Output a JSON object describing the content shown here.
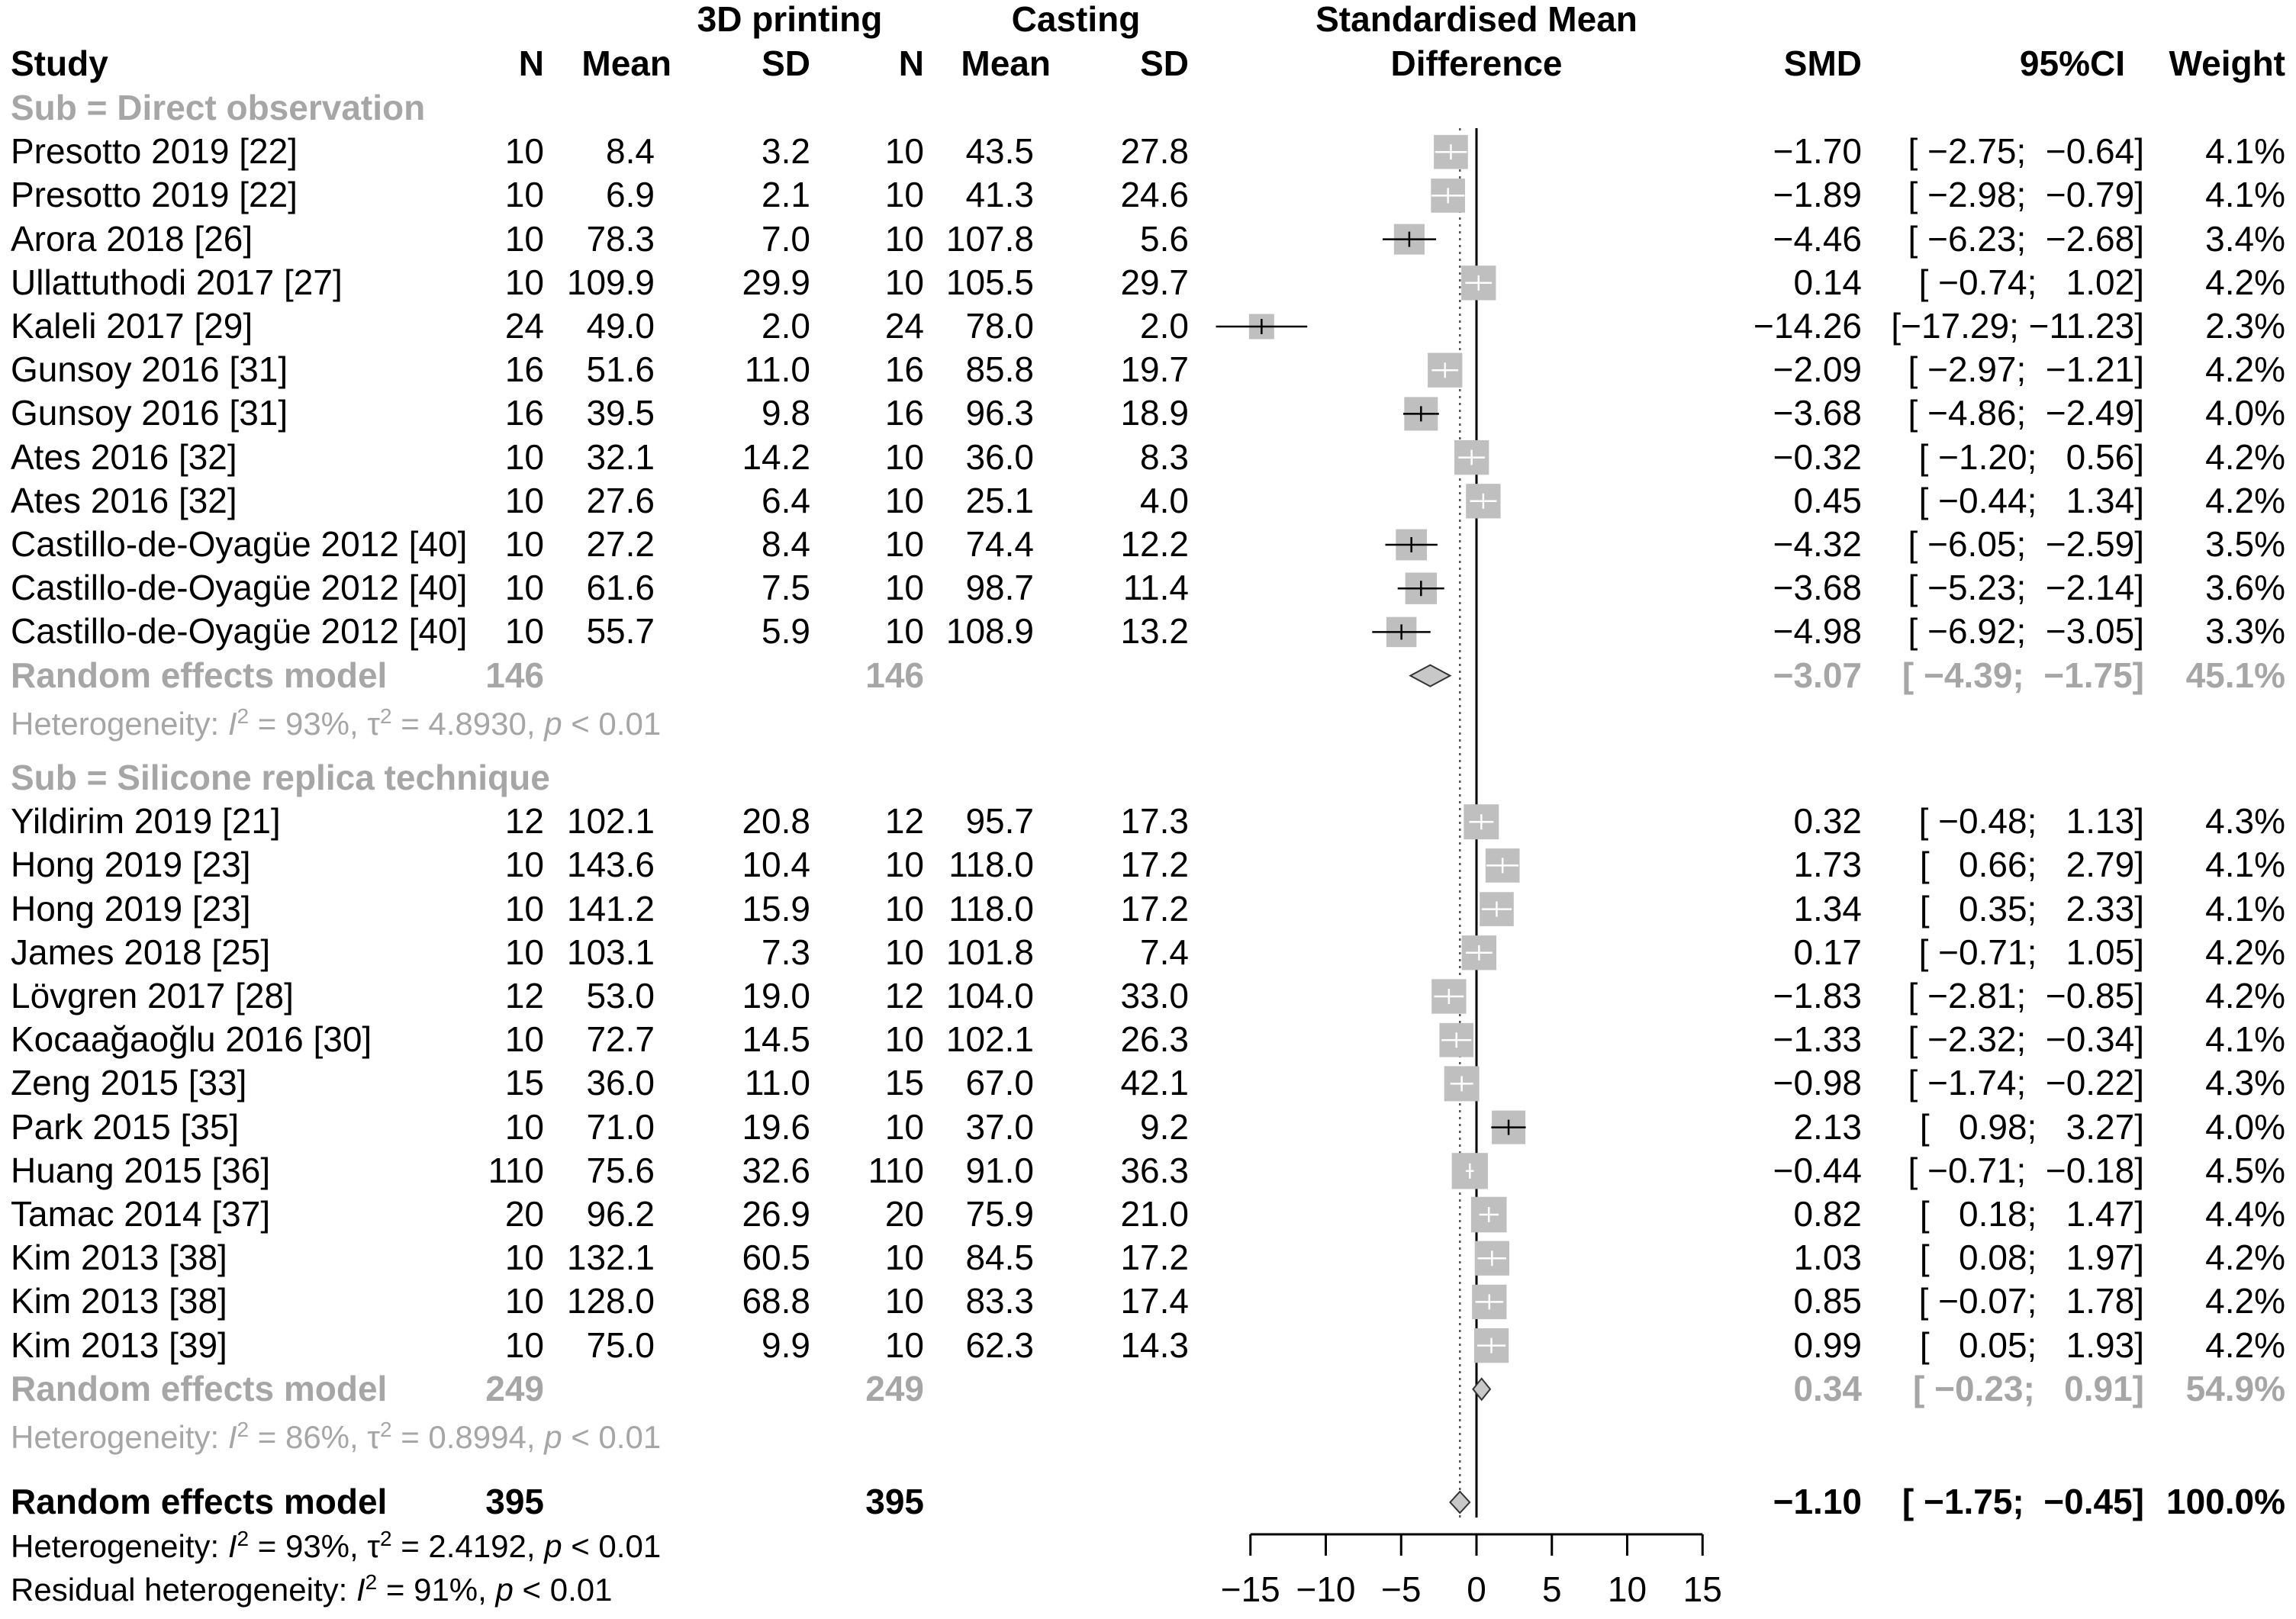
{
  "headers": {
    "group_3d": "3D printing",
    "group_cast": "Casting",
    "smd_line1": "Standardised Mean",
    "smd_line2": "Difference",
    "study": "Study",
    "n1": "N",
    "mean1": "Mean",
    "sd1": "SD",
    "n2": "N",
    "mean2": "Mean",
    "sd2": "SD",
    "smd": "SMD",
    "ci": "95%CI",
    "weight": "Weight"
  },
  "subgroups": [
    {
      "label": "Sub = Direct observation",
      "studies": [
        {
          "study": "Presotto 2019 [22]",
          "n1": "10",
          "m1": "8.4",
          "sd1": "3.2",
          "n2": "10",
          "m2": "43.5",
          "sd2": "27.8",
          "smd_text": "−1.70",
          "ci_text": "[ −2.75;  −0.64]",
          "w_text": "4.1%",
          "smd": -1.7,
          "lo": -2.75,
          "hi": -0.64,
          "w": 4.1
        },
        {
          "study": "Presotto 2019 [22]",
          "n1": "10",
          "m1": "6.9",
          "sd1": "2.1",
          "n2": "10",
          "m2": "41.3",
          "sd2": "24.6",
          "smd_text": "−1.89",
          "ci_text": "[ −2.98;  −0.79]",
          "w_text": "4.1%",
          "smd": -1.89,
          "lo": -2.98,
          "hi": -0.79,
          "w": 4.1
        },
        {
          "study": "Arora 2018 [26]",
          "n1": "10",
          "m1": "78.3",
          "sd1": "7.0",
          "n2": "10",
          "m2": "107.8",
          "sd2": "5.6",
          "smd_text": "−4.46",
          "ci_text": "[ −6.23;  −2.68]",
          "w_text": "3.4%",
          "smd": -4.46,
          "lo": -6.23,
          "hi": -2.68,
          "w": 3.4
        },
        {
          "study": "Ullattuthodi 2017 [27]",
          "n1": "10",
          "m1": "109.9",
          "sd1": "29.9",
          "n2": "10",
          "m2": "105.5",
          "sd2": "29.7",
          "smd_text": "0.14",
          "ci_text": "[ −0.74;   1.02]",
          "w_text": "4.2%",
          "smd": 0.14,
          "lo": -0.74,
          "hi": 1.02,
          "w": 4.2
        },
        {
          "study": "Kaleli 2017 [29]",
          "n1": "24",
          "m1": "49.0",
          "sd1": "2.0",
          "n2": "24",
          "m2": "78.0",
          "sd2": "2.0",
          "smd_text": "−14.26",
          "ci_text": "[−17.29; −11.23]",
          "w_text": "2.3%",
          "smd": -14.26,
          "lo": -17.29,
          "hi": -11.23,
          "w": 2.3
        },
        {
          "study": "Gunsoy 2016 [31]",
          "n1": "16",
          "m1": "51.6",
          "sd1": "11.0",
          "n2": "16",
          "m2": "85.8",
          "sd2": "19.7",
          "smd_text": "−2.09",
          "ci_text": "[ −2.97;  −1.21]",
          "w_text": "4.2%",
          "smd": -2.09,
          "lo": -2.97,
          "hi": -1.21,
          "w": 4.2
        },
        {
          "study": "Gunsoy 2016 [31]",
          "n1": "16",
          "m1": "39.5",
          "sd1": "9.8",
          "n2": "16",
          "m2": "96.3",
          "sd2": "18.9",
          "smd_text": "−3.68",
          "ci_text": "[ −4.86;  −2.49]",
          "w_text": "4.0%",
          "smd": -3.68,
          "lo": -4.86,
          "hi": -2.49,
          "w": 4.0
        },
        {
          "study": "Ates 2016 [32]",
          "n1": "10",
          "m1": "32.1",
          "sd1": "14.2",
          "n2": "10",
          "m2": "36.0",
          "sd2": "8.3",
          "smd_text": "−0.32",
          "ci_text": "[ −1.20;   0.56]",
          "w_text": "4.2%",
          "smd": -0.32,
          "lo": -1.2,
          "hi": 0.56,
          "w": 4.2
        },
        {
          "study": "Ates 2016 [32]",
          "n1": "10",
          "m1": "27.6",
          "sd1": "6.4",
          "n2": "10",
          "m2": "25.1",
          "sd2": "4.0",
          "smd_text": "0.45",
          "ci_text": "[ −0.44;   1.34]",
          "w_text": "4.2%",
          "smd": 0.45,
          "lo": -0.44,
          "hi": 1.34,
          "w": 4.2
        },
        {
          "study": "Castillo-de-Oyagüe 2012 [40]",
          "n1": "10",
          "m1": "27.2",
          "sd1": "8.4",
          "n2": "10",
          "m2": "74.4",
          "sd2": "12.2",
          "smd_text": "−4.32",
          "ci_text": "[ −6.05;  −2.59]",
          "w_text": "3.5%",
          "smd": -4.32,
          "lo": -6.05,
          "hi": -2.59,
          "w": 3.5
        },
        {
          "study": "Castillo-de-Oyagüe 2012 [40]",
          "n1": "10",
          "m1": "61.6",
          "sd1": "7.5",
          "n2": "10",
          "m2": "98.7",
          "sd2": "11.4",
          "smd_text": "−3.68",
          "ci_text": "[ −5.23;  −2.14]",
          "w_text": "3.6%",
          "smd": -3.68,
          "lo": -5.23,
          "hi": -2.14,
          "w": 3.6
        },
        {
          "study": "Castillo-de-Oyagüe 2012 [40]",
          "n1": "10",
          "m1": "55.7",
          "sd1": "5.9",
          "n2": "10",
          "m2": "108.9",
          "sd2": "13.2",
          "smd_text": "−4.98",
          "ci_text": "[ −6.92;  −3.05]",
          "w_text": "3.3%",
          "smd": -4.98,
          "lo": -6.92,
          "hi": -3.05,
          "w": 3.3
        }
      ],
      "model": {
        "label": "Random effects model",
        "n1": "146",
        "n2": "146",
        "smd_text": "−3.07",
        "ci_text": "[ −4.39;  −1.75]",
        "w_text": "45.1%",
        "smd": -3.07,
        "lo": -4.39,
        "hi": -1.75
      },
      "heterogeneity": {
        "prefix": "Heterogeneity: ",
        "i2": "I",
        "mid1": " = 93%, ",
        "tau": "τ",
        "mid2": " = 4.8930, ",
        "p": "p",
        "tail": " < 0.01"
      }
    },
    {
      "label": "Sub = Silicone replica technique",
      "studies": [
        {
          "study": "Yildirim 2019 [21]",
          "n1": "12",
          "m1": "102.1",
          "sd1": "20.8",
          "n2": "12",
          "m2": "95.7",
          "sd2": "17.3",
          "smd_text": "0.32",
          "ci_text": "[ −0.48;   1.13]",
          "w_text": "4.3%",
          "smd": 0.32,
          "lo": -0.48,
          "hi": 1.13,
          "w": 4.3
        },
        {
          "study": "Hong 2019 [23]",
          "n1": "10",
          "m1": "143.6",
          "sd1": "10.4",
          "n2": "10",
          "m2": "118.0",
          "sd2": "17.2",
          "smd_text": "1.73",
          "ci_text": "[   0.66;   2.79]",
          "w_text": "4.1%",
          "smd": 1.73,
          "lo": 0.66,
          "hi": 2.79,
          "w": 4.1
        },
        {
          "study": "Hong 2019 [23]",
          "n1": "10",
          "m1": "141.2",
          "sd1": "15.9",
          "n2": "10",
          "m2": "118.0",
          "sd2": "17.2",
          "smd_text": "1.34",
          "ci_text": "[   0.35;   2.33]",
          "w_text": "4.1%",
          "smd": 1.34,
          "lo": 0.35,
          "hi": 2.33,
          "w": 4.1
        },
        {
          "study": "James 2018 [25]",
          "n1": "10",
          "m1": "103.1",
          "sd1": "7.3",
          "n2": "10",
          "m2": "101.8",
          "sd2": "7.4",
          "smd_text": "0.17",
          "ci_text": "[ −0.71;   1.05]",
          "w_text": "4.2%",
          "smd": 0.17,
          "lo": -0.71,
          "hi": 1.05,
          "w": 4.2
        },
        {
          "study": "Lövgren 2017 [28]",
          "n1": "12",
          "m1": "53.0",
          "sd1": "19.0",
          "n2": "12",
          "m2": "104.0",
          "sd2": "33.0",
          "smd_text": "−1.83",
          "ci_text": "[ −2.81;  −0.85]",
          "w_text": "4.2%",
          "smd": -1.83,
          "lo": -2.81,
          "hi": -0.85,
          "w": 4.2
        },
        {
          "study": "Kocaağaoğlu 2016 [30]",
          "n1": "10",
          "m1": "72.7",
          "sd1": "14.5",
          "n2": "10",
          "m2": "102.1",
          "sd2": "26.3",
          "smd_text": "−1.33",
          "ci_text": "[ −2.32;  −0.34]",
          "w_text": "4.1%",
          "smd": -1.33,
          "lo": -2.32,
          "hi": -0.34,
          "w": 4.1
        },
        {
          "study": "Zeng 2015 [33]",
          "n1": "15",
          "m1": "36.0",
          "sd1": "11.0",
          "n2": "15",
          "m2": "67.0",
          "sd2": "42.1",
          "smd_text": "−0.98",
          "ci_text": "[ −1.74;  −0.22]",
          "w_text": "4.3%",
          "smd": -0.98,
          "lo": -1.74,
          "hi": -0.22,
          "w": 4.3
        },
        {
          "study": "Park 2015 [35]",
          "n1": "10",
          "m1": "71.0",
          "sd1": "19.6",
          "n2": "10",
          "m2": "37.0",
          "sd2": "9.2",
          "smd_text": "2.13",
          "ci_text": "[   0.98;   3.27]",
          "w_text": "4.0%",
          "smd": 2.13,
          "lo": 0.98,
          "hi": 3.27,
          "w": 4.0
        },
        {
          "study": "Huang 2015 [36]",
          "n1": "110",
          "m1": "75.6",
          "sd1": "32.6",
          "n2": "110",
          "m2": "91.0",
          "sd2": "36.3",
          "smd_text": "−0.44",
          "ci_text": "[ −0.71;  −0.18]",
          "w_text": "4.5%",
          "smd": -0.44,
          "lo": -0.71,
          "hi": -0.18,
          "w": 4.5
        },
        {
          "study": "Tamac 2014 [37]",
          "n1": "20",
          "m1": "96.2",
          "sd1": "26.9",
          "n2": "20",
          "m2": "75.9",
          "sd2": "21.0",
          "smd_text": "0.82",
          "ci_text": "[   0.18;   1.47]",
          "w_text": "4.4%",
          "smd": 0.82,
          "lo": 0.18,
          "hi": 1.47,
          "w": 4.4
        },
        {
          "study": "Kim 2013 [38]",
          "n1": "10",
          "m1": "132.1",
          "sd1": "60.5",
          "n2": "10",
          "m2": "84.5",
          "sd2": "17.2",
          "smd_text": "1.03",
          "ci_text": "[   0.08;   1.97]",
          "w_text": "4.2%",
          "smd": 1.03,
          "lo": 0.08,
          "hi": 1.97,
          "w": 4.2
        },
        {
          "study": "Kim 2013 [38]",
          "n1": "10",
          "m1": "128.0",
          "sd1": "68.8",
          "n2": "10",
          "m2": "83.3",
          "sd2": "17.4",
          "smd_text": "0.85",
          "ci_text": "[ −0.07;   1.78]",
          "w_text": "4.2%",
          "smd": 0.85,
          "lo": -0.07,
          "hi": 1.78,
          "w": 4.2
        },
        {
          "study": "Kim 2013 [39]",
          "n1": "10",
          "m1": "75.0",
          "sd1": "9.9",
          "n2": "10",
          "m2": "62.3",
          "sd2": "14.3",
          "smd_text": "0.99",
          "ci_text": "[   0.05;   1.93]",
          "w_text": "4.2%",
          "smd": 0.99,
          "lo": 0.05,
          "hi": 1.93,
          "w": 4.2
        }
      ],
      "model": {
        "label": "Random effects model",
        "n1": "249",
        "n2": "249",
        "smd_text": "0.34",
        "ci_text": "[ −0.23;   0.91]",
        "w_text": "54.9%",
        "smd": 0.34,
        "lo": -0.23,
        "hi": 0.91
      },
      "heterogeneity": {
        "prefix": "Heterogeneity: ",
        "i2": "I",
        "mid1": " = 86%, ",
        "tau": "τ",
        "mid2": " = 0.8994, ",
        "p": "p",
        "tail": " < 0.01"
      }
    }
  ],
  "overall": {
    "label": "Random effects model",
    "n1": "395",
    "n2": "395",
    "smd_text": "−1.10",
    "ci_text": "[ −1.75;  −0.45]",
    "w_text": "100.0%",
    "smd": -1.1,
    "lo": -1.75,
    "hi": -0.45,
    "heterogeneity": {
      "prefix": "Heterogeneity: ",
      "i2": "I",
      "mid1": " = 93%, ",
      "tau": "τ",
      "mid2": " = 2.4192, ",
      "p": "p",
      "tail": " < 0.01"
    },
    "residual": {
      "prefix": "Residual heterogeneity: ",
      "i2": "I",
      "mid1": " = 91%, ",
      "p": "p",
      "tail": " < 0.01"
    }
  },
  "chart_data": {
    "type": "forest",
    "title": "Standardised Mean Difference",
    "xlim": [
      -15,
      15
    ],
    "ticks": [
      -15,
      -10,
      -5,
      0,
      5,
      10,
      15
    ],
    "tick_labels": [
      "−15",
      "−10",
      "−5",
      "0",
      "5",
      "10",
      "15"
    ],
    "reference_line": 0,
    "overall_line": -1.1,
    "colors": {
      "box": "#bfbfbf",
      "diamond": "#c8c8c8",
      "grey_text": "#a6a6a6"
    }
  }
}
